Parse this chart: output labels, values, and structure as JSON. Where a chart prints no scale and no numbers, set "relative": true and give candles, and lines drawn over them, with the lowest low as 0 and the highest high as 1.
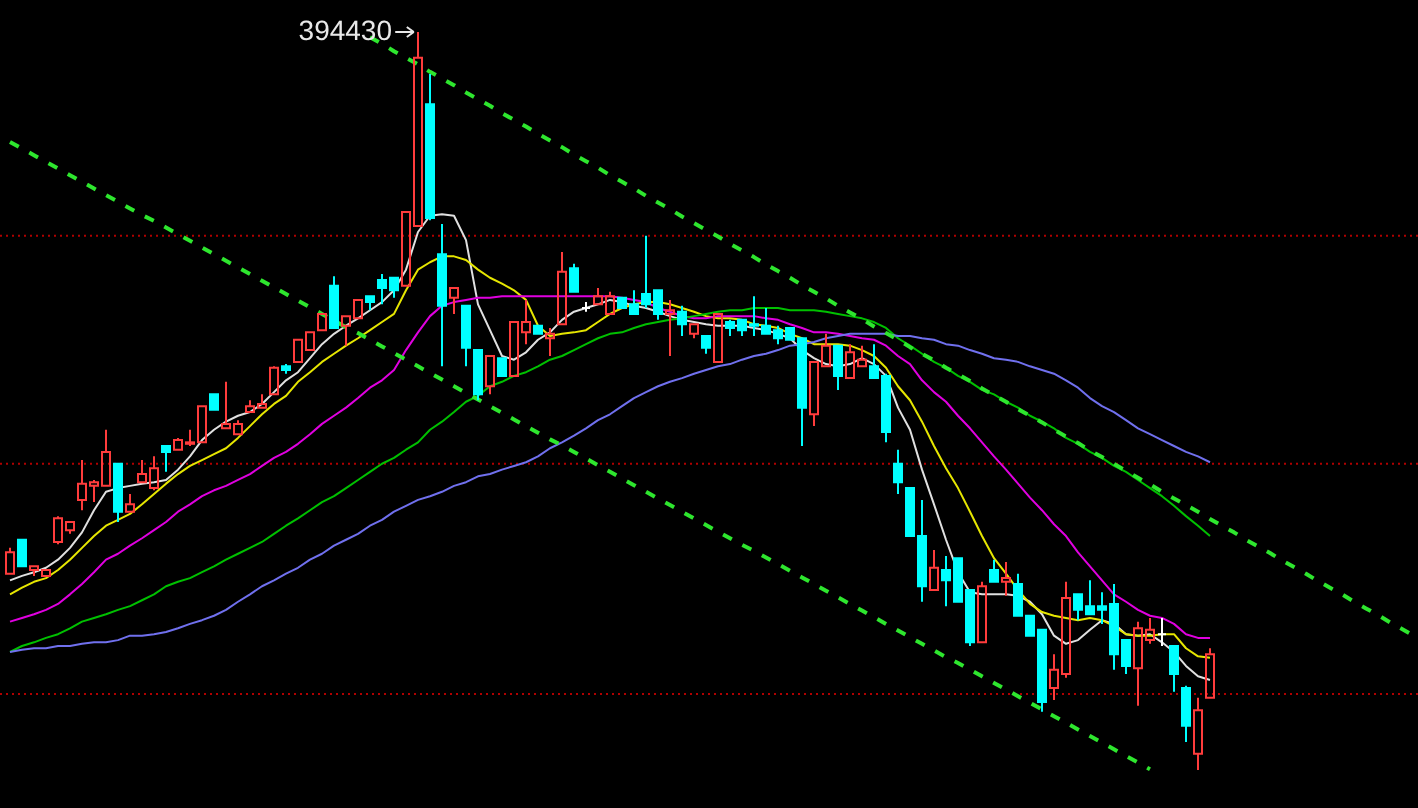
{
  "chart_data": {
    "type": "candlestick",
    "relative": true,
    "categories": [
      null,
      null,
      null,
      null,
      null,
      null,
      null,
      null,
      null,
      null,
      null,
      null,
      null,
      null,
      null,
      null,
      null,
      null,
      null,
      null,
      null,
      null,
      null,
      null,
      null,
      null,
      null,
      null,
      null,
      null,
      null,
      null,
      null,
      null,
      null,
      null,
      null,
      null,
      null,
      null,
      null,
      null,
      null,
      null,
      null,
      null,
      null,
      null,
      null,
      null,
      null,
      null,
      null,
      null,
      null,
      null,
      null,
      null,
      null,
      null,
      null,
      null,
      null,
      null,
      null,
      null,
      null,
      null,
      null,
      null,
      null,
      null,
      null,
      null,
      null,
      null,
      null,
      null,
      null,
      null,
      null,
      null,
      null,
      null,
      null,
      null,
      null,
      null,
      null,
      null,
      null,
      null,
      null,
      null,
      null,
      null,
      null,
      null,
      null,
      null,
      null,
      null,
      null,
      null,
      null,
      null,
      null,
      null,
      null,
      null,
      null,
      null,
      null,
      null,
      null,
      null,
      null,
      null
    ],
    "ohlc": [
      [
        0.266,
        0.301,
        0.266,
        0.295
      ],
      [
        0.312,
        0.312,
        0.276,
        0.276
      ],
      [
        0.271,
        0.276,
        0.263,
        0.276
      ],
      [
        0.263,
        0.271,
        0.263,
        0.271
      ],
      [
        0.309,
        0.344,
        0.306,
        0.341
      ],
      [
        0.325,
        0.336,
        0.32,
        0.336
      ],
      [
        0.366,
        0.42,
        0.352,
        0.388
      ],
      [
        0.385,
        0.393,
        0.363,
        0.39
      ],
      [
        0.385,
        0.461,
        0.385,
        0.431
      ],
      [
        0.415,
        0.415,
        0.336,
        0.35
      ],
      [
        0.35,
        0.374,
        0.35,
        0.36
      ],
      [
        0.39,
        0.42,
        0.39,
        0.401
      ],
      [
        0.382,
        0.425,
        0.379,
        0.409
      ],
      [
        0.439,
        0.439,
        0.404,
        0.431
      ],
      [
        0.434,
        0.45,
        0.434,
        0.447
      ],
      [
        0.442,
        0.461,
        0.439,
        0.444
      ],
      [
        0.444,
        0.493,
        0.444,
        0.493
      ],
      [
        0.509,
        0.509,
        0.488,
        0.488
      ],
      [
        0.463,
        0.526,
        0.463,
        0.469
      ],
      [
        0.455,
        0.474,
        0.455,
        0.469
      ],
      [
        0.485,
        0.501,
        0.485,
        0.493
      ],
      [
        0.491,
        0.509,
        0.491,
        0.496
      ],
      [
        0.509,
        0.547,
        0.509,
        0.545
      ],
      [
        0.547,
        0.55,
        0.537,
        0.542
      ],
      [
        0.553,
        0.583,
        0.553,
        0.583
      ],
      [
        0.569,
        0.593,
        0.569,
        0.593
      ],
      [
        0.596,
        0.618,
        0.596,
        0.618
      ],
      [
        0.656,
        0.669,
        0.599,
        0.599
      ],
      [
        0.602,
        0.615,
        0.575,
        0.615
      ],
      [
        0.612,
        0.637,
        0.612,
        0.637
      ],
      [
        0.642,
        0.642,
        0.623,
        0.634
      ],
      [
        0.664,
        0.672,
        0.631,
        0.653
      ],
      [
        0.667,
        0.667,
        0.64,
        0.65
      ],
      [
        0.656,
        0.756,
        0.656,
        0.756
      ],
      [
        0.737,
        1,
        0.737,
        0.965
      ],
      [
        0.902,
        0.943,
        0.745,
        0.748
      ],
      [
        0.699,
        0.74,
        0.547,
        0.629
      ],
      [
        0.64,
        0.653,
        0.618,
        0.653
      ],
      [
        0.629,
        0.629,
        0.547,
        0.572
      ],
      [
        0.569,
        0.569,
        0.501,
        0.509
      ],
      [
        0.52,
        0.561,
        0.509,
        0.561
      ],
      [
        0.558,
        0.558,
        0.534,
        0.534
      ],
      [
        0.534,
        0.607,
        0.534,
        0.607
      ],
      [
        0.593,
        0.637,
        0.577,
        0.607
      ],
      [
        0.602,
        0.602,
        0.591,
        0.591
      ],
      [
        0.585,
        0.599,
        0.561,
        0.591
      ],
      [
        0.604,
        0.702,
        0.604,
        0.675
      ],
      [
        0.68,
        0.686,
        0.648,
        0.648
      ],
      [
        0.626,
        0.634,
        0.621,
        0.626
      ],
      [
        0.631,
        0.653,
        0.631,
        0.642
      ],
      [
        0.618,
        0.648,
        0.618,
        0.642
      ],
      [
        0.64,
        0.64,
        0.626,
        0.626
      ],
      [
        0.631,
        0.65,
        0.618,
        0.618
      ],
      [
        0.645,
        0.724,
        0.626,
        0.631
      ],
      [
        0.65,
        0.65,
        0.61,
        0.618
      ],
      [
        0.618,
        0.637,
        0.561,
        0.623
      ],
      [
        0.621,
        0.629,
        0.588,
        0.604
      ],
      [
        0.591,
        0.604,
        0.585,
        0.604
      ],
      [
        0.588,
        0.588,
        0.564,
        0.572
      ],
      [
        0.553,
        0.618,
        0.553,
        0.618
      ],
      [
        0.607,
        0.61,
        0.588,
        0.599
      ],
      [
        0.61,
        0.61,
        0.588,
        0.596
      ],
      [
        0.604,
        0.642,
        0.588,
        0.602
      ],
      [
        0.602,
        0.626,
        0.591,
        0.591
      ],
      [
        0.596,
        0.602,
        0.577,
        0.585
      ],
      [
        0.599,
        0.599,
        0.583,
        0.583
      ],
      [
        0.585,
        0.585,
        0.439,
        0.491
      ],
      [
        0.482,
        0.553,
        0.466,
        0.553
      ],
      [
        0.547,
        0.591,
        0.547,
        0.575
      ],
      [
        0.575,
        0.575,
        0.515,
        0.534
      ],
      [
        0.531,
        0.577,
        0.531,
        0.566
      ],
      [
        0.547,
        0.575,
        0.547,
        0.556
      ],
      [
        0.547,
        0.577,
        0.531,
        0.531
      ],
      [
        0.534,
        0.537,
        0.444,
        0.458
      ],
      [
        0.415,
        0.434,
        0.374,
        0.39
      ],
      [
        0.382,
        0.382,
        0.317,
        0.317
      ],
      [
        0.317,
        0.366,
        0.228,
        0.249
      ],
      [
        0.244,
        0.298,
        0.244,
        0.274
      ],
      [
        0.271,
        0.29,
        0.222,
        0.257
      ],
      [
        0.287,
        0.287,
        0.228,
        0.228
      ],
      [
        0.244,
        0.244,
        0.168,
        0.173
      ],
      [
        0.173,
        0.255,
        0.173,
        0.249
      ],
      [
        0.271,
        0.285,
        0.255,
        0.255
      ],
      [
        0.255,
        0.282,
        0.236,
        0.26
      ],
      [
        0.252,
        0.266,
        0.209,
        0.209
      ],
      [
        0.209,
        0.209,
        0.182,
        0.182
      ],
      [
        0.19,
        0.19,
        0.079,
        0.092
      ],
      [
        0.111,
        0.157,
        0.095,
        0.136
      ],
      [
        0.13,
        0.255,
        0.125,
        0.233
      ],
      [
        0.238,
        0.238,
        0.203,
        0.217
      ],
      [
        0.222,
        0.257,
        0.211,
        0.211
      ],
      [
        0.222,
        0.241,
        0.198,
        0.217
      ],
      [
        0.225,
        0.252,
        0.136,
        0.157
      ],
      [
        0.176,
        0.176,
        0.13,
        0.141
      ],
      [
        0.138,
        0.201,
        0.087,
        0.192
      ],
      [
        0.176,
        0.206,
        0.171,
        0.19
      ],
      [
        0.184,
        0.206,
        0.168,
        0.184
      ],
      [
        0.168,
        0.168,
        0.106,
        0.13
      ],
      [
        0.111,
        0.114,
        0.038,
        0.06
      ],
      [
        0.022,
        0.098,
        0,
        0.081
      ],
      [
        0.098,
        0.165,
        0.098,
        0.157
      ],
      null,
      null,
      null,
      null,
      null,
      null,
      null,
      null,
      null,
      null,
      null,
      null,
      null,
      null,
      null,
      null,
      null
    ],
    "colors": [
      "#ff3c3c",
      "#00ffff",
      "#ff3c3c",
      "#ff3c3c",
      "#ff3c3c",
      "#ff3c3c",
      "#ff3c3c",
      "#ff3c3c",
      "#ff3c3c",
      "#00ffff",
      "#ff3c3c",
      "#ff3c3c",
      "#ff3c3c",
      "#00ffff",
      "#ff3c3c",
      "#ff3c3c",
      "#ff3c3c",
      "#00ffff",
      "#ff3c3c",
      "#ff3c3c",
      "#ff3c3c",
      "#ff3c3c",
      "#ff3c3c",
      "#00ffff",
      "#ff3c3c",
      "#ff3c3c",
      "#ff3c3c",
      "#00ffff",
      "#ff3c3c",
      "#ff3c3c",
      "#00ffff",
      "#00ffff",
      "#00ffff",
      "#ff3c3c",
      "#ff3c3c",
      "#00ffff",
      "#00ffff",
      "#ff3c3c",
      "#00ffff",
      "#00ffff",
      "#ff3c3c",
      "#00ffff",
      "#ff3c3c",
      "#ff3c3c",
      "#00ffff",
      "#ff3c3c",
      "#ff3c3c",
      "#00ffff",
      "#ffffff",
      "#ff3c3c",
      "#ff3c3c",
      "#00ffff",
      "#00ffff",
      "#00ffff",
      "#00ffff",
      "#ff3c3c",
      "#00ffff",
      "#ff3c3c",
      "#00ffff",
      "#ff3c3c",
      "#00ffff",
      "#00ffff",
      "#00ffff",
      "#00ffff",
      "#00ffff",
      "#00ffff",
      "#00ffff",
      "#ff3c3c",
      "#ff3c3c",
      "#00ffff",
      "#ff3c3c",
      "#ff3c3c",
      "#00ffff",
      "#00ffff",
      "#00ffff",
      "#00ffff",
      "#00ffff",
      "#ff3c3c",
      "#00ffff",
      "#00ffff",
      "#00ffff",
      "#ff3c3c",
      "#00ffff",
      "#ff3c3c",
      "#00ffff",
      "#00ffff",
      "#00ffff",
      "#ff3c3c",
      "#ff3c3c",
      "#00ffff",
      "#00ffff",
      "#00ffff",
      "#00ffff",
      "#00ffff",
      "#ff3c3c",
      "#ff3c3c",
      "#ffffff",
      "#00ffff",
      "#00ffff",
      "#ff3c3c",
      "#ff3c3c",
      null,
      null,
      null,
      null,
      null,
      null,
      null,
      null,
      null,
      null,
      null,
      null,
      null,
      null,
      null,
      null,
      null
    ],
    "series": [
      {
        "type": "line",
        "color": "#e0e0e0",
        "values": [
          0.257,
          0.263,
          0.268,
          0.274,
          0.285,
          0.301,
          0.322,
          0.352,
          0.377,
          0.382,
          0.385,
          0.388,
          0.39,
          0.393,
          0.407,
          0.425,
          0.447,
          0.461,
          0.472,
          0.48,
          0.485,
          0.496,
          0.512,
          0.528,
          0.539,
          0.558,
          0.577,
          0.591,
          0.602,
          0.612,
          0.623,
          0.634,
          0.65,
          0.678,
          0.729,
          0.751,
          0.753,
          0.751,
          0.718,
          0.631,
          0.596,
          0.561,
          0.556,
          0.566,
          0.583,
          0.593,
          0.61,
          0.621,
          0.626,
          0.631,
          0.637,
          0.634,
          0.629,
          0.626,
          0.621,
          0.615,
          0.61,
          0.607,
          0.604,
          0.602,
          0.602,
          0.602,
          0.599,
          0.596,
          0.591,
          0.585,
          0.569,
          0.558,
          0.55,
          0.547,
          0.55,
          0.558,
          0.55,
          0.534,
          0.491,
          0.461,
          0.407,
          0.36,
          0.312,
          0.268,
          0.241,
          0.238,
          0.238,
          0.238,
          0.236,
          0.228,
          0.211,
          0.182,
          0.171,
          0.176,
          0.19,
          0.203,
          0.198,
          0.184,
          0.182,
          0.184,
          0.173,
          0.16,
          0.141,
          0.127,
          0.122,
          null,
          null,
          null,
          null,
          null,
          null,
          null,
          null,
          null,
          null,
          null,
          null,
          null,
          null,
          null,
          null,
          null
        ]
      },
      {
        "type": "line",
        "color": "#e6e600",
        "values": [
          0.238,
          0.247,
          0.255,
          0.26,
          0.271,
          0.285,
          0.301,
          0.317,
          0.331,
          0.339,
          0.347,
          0.36,
          0.374,
          0.388,
          0.401,
          0.412,
          0.42,
          0.428,
          0.436,
          0.45,
          0.466,
          0.482,
          0.496,
          0.507,
          0.526,
          0.539,
          0.553,
          0.564,
          0.575,
          0.585,
          0.596,
          0.607,
          0.618,
          0.65,
          0.678,
          0.688,
          0.696,
          0.696,
          0.691,
          0.678,
          0.667,
          0.659,
          0.65,
          0.637,
          0.602,
          0.588,
          0.591,
          0.593,
          0.596,
          0.607,
          0.618,
          0.626,
          0.631,
          0.634,
          0.634,
          0.631,
          0.626,
          0.621,
          0.615,
          0.612,
          0.612,
          0.61,
          0.604,
          0.602,
          0.599,
          0.591,
          0.585,
          0.577,
          0.577,
          0.577,
          0.575,
          0.569,
          0.561,
          0.545,
          0.52,
          0.501,
          0.472,
          0.439,
          0.409,
          0.382,
          0.35,
          0.317,
          0.287,
          0.266,
          0.244,
          0.225,
          0.214,
          0.209,
          0.206,
          0.203,
          0.206,
          0.203,
          0.195,
          0.184,
          0.182,
          0.182,
          0.184,
          0.184,
          0.165,
          0.154,
          0.152,
          null,
          null,
          null,
          null,
          null,
          null,
          null,
          null,
          null,
          null,
          null,
          null,
          null,
          null,
          null,
          null,
          null
        ]
      },
      {
        "type": "line",
        "color": "#e000e0",
        "values": [
          0.201,
          0.206,
          0.211,
          0.217,
          0.225,
          0.238,
          0.252,
          0.268,
          0.285,
          0.293,
          0.304,
          0.314,
          0.325,
          0.336,
          0.35,
          0.36,
          0.371,
          0.379,
          0.385,
          0.393,
          0.401,
          0.412,
          0.423,
          0.431,
          0.442,
          0.455,
          0.469,
          0.48,
          0.491,
          0.504,
          0.518,
          0.528,
          0.542,
          0.569,
          0.593,
          0.615,
          0.629,
          0.634,
          0.637,
          0.64,
          0.64,
          0.642,
          0.642,
          0.642,
          0.642,
          0.642,
          0.642,
          0.642,
          0.642,
          0.642,
          0.642,
          0.64,
          0.637,
          0.634,
          0.626,
          0.621,
          0.615,
          0.612,
          0.612,
          0.615,
          0.615,
          0.615,
          0.615,
          0.612,
          0.61,
          0.604,
          0.599,
          0.593,
          0.593,
          0.591,
          0.588,
          0.585,
          0.583,
          0.575,
          0.561,
          0.55,
          0.528,
          0.512,
          0.499,
          0.48,
          0.463,
          0.444,
          0.425,
          0.407,
          0.388,
          0.369,
          0.352,
          0.333,
          0.317,
          0.295,
          0.276,
          0.257,
          0.238,
          0.228,
          0.217,
          0.209,
          0.206,
          0.198,
          0.184,
          0.179,
          0.179,
          null,
          null,
          null,
          null,
          null,
          null,
          null,
          null,
          null,
          null,
          null,
          null,
          null,
          null,
          null,
          null,
          null
        ]
      },
      {
        "type": "line",
        "color": "#00c000",
        "values": [
          0.16,
          0.168,
          0.173,
          0.179,
          0.184,
          0.192,
          0.201,
          0.206,
          0.211,
          0.217,
          0.222,
          0.23,
          0.238,
          0.249,
          0.255,
          0.26,
          0.268,
          0.276,
          0.285,
          0.293,
          0.301,
          0.309,
          0.32,
          0.331,
          0.341,
          0.352,
          0.363,
          0.371,
          0.382,
          0.393,
          0.404,
          0.415,
          0.423,
          0.434,
          0.444,
          0.461,
          0.472,
          0.485,
          0.499,
          0.507,
          0.52,
          0.526,
          0.534,
          0.539,
          0.547,
          0.556,
          0.561,
          0.569,
          0.577,
          0.585,
          0.591,
          0.593,
          0.599,
          0.604,
          0.607,
          0.61,
          0.612,
          0.615,
          0.618,
          0.621,
          0.623,
          0.623,
          0.626,
          0.626,
          0.626,
          0.623,
          0.623,
          0.623,
          0.621,
          0.618,
          0.615,
          0.612,
          0.607,
          0.599,
          0.585,
          0.575,
          0.564,
          0.553,
          0.545,
          0.534,
          0.526,
          0.515,
          0.509,
          0.499,
          0.491,
          0.48,
          0.472,
          0.463,
          0.45,
          0.442,
          0.431,
          0.423,
          0.412,
          0.404,
          0.393,
          0.382,
          0.371,
          0.358,
          0.344,
          0.331,
          0.317,
          null,
          null,
          null,
          null,
          null,
          null,
          null,
          null,
          null,
          null,
          null,
          null,
          null,
          null,
          null,
          null,
          null
        ]
      },
      {
        "type": "line",
        "color": "#7070ee",
        "values": [
          0.16,
          0.163,
          0.165,
          0.165,
          0.168,
          0.168,
          0.171,
          0.173,
          0.173,
          0.176,
          0.182,
          0.182,
          0.184,
          0.187,
          0.192,
          0.198,
          0.203,
          0.209,
          0.217,
          0.228,
          0.238,
          0.249,
          0.257,
          0.266,
          0.274,
          0.285,
          0.293,
          0.304,
          0.312,
          0.32,
          0.331,
          0.339,
          0.35,
          0.358,
          0.366,
          0.371,
          0.377,
          0.385,
          0.39,
          0.398,
          0.401,
          0.407,
          0.412,
          0.417,
          0.425,
          0.436,
          0.444,
          0.453,
          0.463,
          0.474,
          0.482,
          0.493,
          0.504,
          0.512,
          0.52,
          0.526,
          0.531,
          0.537,
          0.542,
          0.547,
          0.55,
          0.556,
          0.561,
          0.564,
          0.569,
          0.575,
          0.577,
          0.58,
          0.585,
          0.588,
          0.591,
          0.591,
          0.591,
          0.591,
          0.588,
          0.588,
          0.585,
          0.583,
          0.577,
          0.575,
          0.569,
          0.564,
          0.558,
          0.556,
          0.553,
          0.547,
          0.542,
          0.537,
          0.528,
          0.518,
          0.504,
          0.493,
          0.485,
          0.474,
          0.463,
          0.455,
          0.447,
          0.439,
          0.431,
          0.425,
          0.417,
          null,
          null,
          null,
          null,
          null,
          null,
          null,
          null,
          null,
          null,
          null,
          null,
          null,
          null,
          null,
          null,
          null
        ]
      },
      {
        "type": "line",
        "color": "#2ee62e",
        "line_style": "dashed",
        "values": [
          null,
          null,
          null,
          null,
          null,
          null,
          null,
          null,
          null,
          null,
          null,
          null,
          null,
          null,
          null,
          null,
          null,
          null,
          null,
          null,
          null,
          null,
          null,
          null,
          null,
          null,
          null,
          null,
          null,
          null,
          0.993,
          0.984,
          0.974,
          0.965,
          0.956,
          0.946,
          0.937,
          0.928,
          0.918,
          0.909,
          0.9,
          0.89,
          0.881,
          0.872,
          0.862,
          0.853,
          0.844,
          0.834,
          0.825,
          0.816,
          0.806,
          0.797,
          0.788,
          0.778,
          0.769,
          0.76,
          0.75,
          0.741,
          0.732,
          0.723,
          0.713,
          0.704,
          0.695,
          0.685,
          0.676,
          0.667,
          0.657,
          0.648,
          0.639,
          0.629,
          0.62,
          0.611,
          0.601,
          0.592,
          0.583,
          0.573,
          0.564,
          0.555,
          0.545,
          0.536,
          0.527,
          0.517,
          0.508,
          0.499,
          0.489,
          0.48,
          0.471,
          0.461,
          0.452,
          0.443,
          0.433,
          0.424,
          0.415,
          0.405,
          0.396,
          0.387,
          0.377,
          0.368,
          0.359,
          0.35,
          0.34,
          0.331,
          0.322,
          0.312,
          0.303,
          0.294,
          0.284,
          0.275,
          0.266,
          0.256,
          0.247,
          0.238,
          0.228,
          0.219,
          0.21,
          0.2,
          0.191,
          0.182
        ]
      },
      {
        "type": "line",
        "color": "#2ee62e",
        "line_style": "dashed",
        "values": [
          0.851,
          0.842,
          0.833,
          0.824,
          0.815,
          0.806,
          0.797,
          0.788,
          0.779,
          0.77,
          0.761,
          0.752,
          0.744,
          0.735,
          0.726,
          0.717,
          0.708,
          0.699,
          0.69,
          0.681,
          0.672,
          0.663,
          0.654,
          0.645,
          0.636,
          0.627,
          0.618,
          0.609,
          0.6,
          0.592,
          0.583,
          0.574,
          0.565,
          0.556,
          0.547,
          0.538,
          0.529,
          0.52,
          0.511,
          0.502,
          0.493,
          0.484,
          0.475,
          0.466,
          0.457,
          0.448,
          0.44,
          0.431,
          0.422,
          0.413,
          0.404,
          0.395,
          0.386,
          0.377,
          0.368,
          0.359,
          0.35,
          0.341,
          0.332,
          0.323,
          0.314,
          0.305,
          0.297,
          0.288,
          0.279,
          0.27,
          0.261,
          0.252,
          0.243,
          0.234,
          0.225,
          0.216,
          0.207,
          0.198,
          0.189,
          0.18,
          0.171,
          0.162,
          0.153,
          0.145,
          0.136,
          0.127,
          0.118,
          0.109,
          0.1,
          0.091,
          0.082,
          0.073,
          0.064,
          0.055,
          0.046,
          0.037,
          0.028,
          0.019,
          0.01,
          0.001,
          null,
          null,
          null,
          null,
          null,
          null,
          null,
          null,
          null,
          null,
          null,
          null,
          null,
          null,
          null,
          null,
          null,
          null,
          null,
          null,
          null,
          null
        ]
      }
    ],
    "ref_lines": [
      {
        "axis": "y",
        "value": 0.724,
        "color": "#b00000",
        "line_style": "dotted"
      },
      {
        "axis": "y",
        "value": 0.415,
        "color": "#b00000",
        "line_style": "dotted"
      },
      {
        "axis": "y",
        "value": 0.103,
        "color": "#b00000",
        "line_style": "dotted"
      }
    ],
    "annotations": [
      "394430"
    ]
  }
}
